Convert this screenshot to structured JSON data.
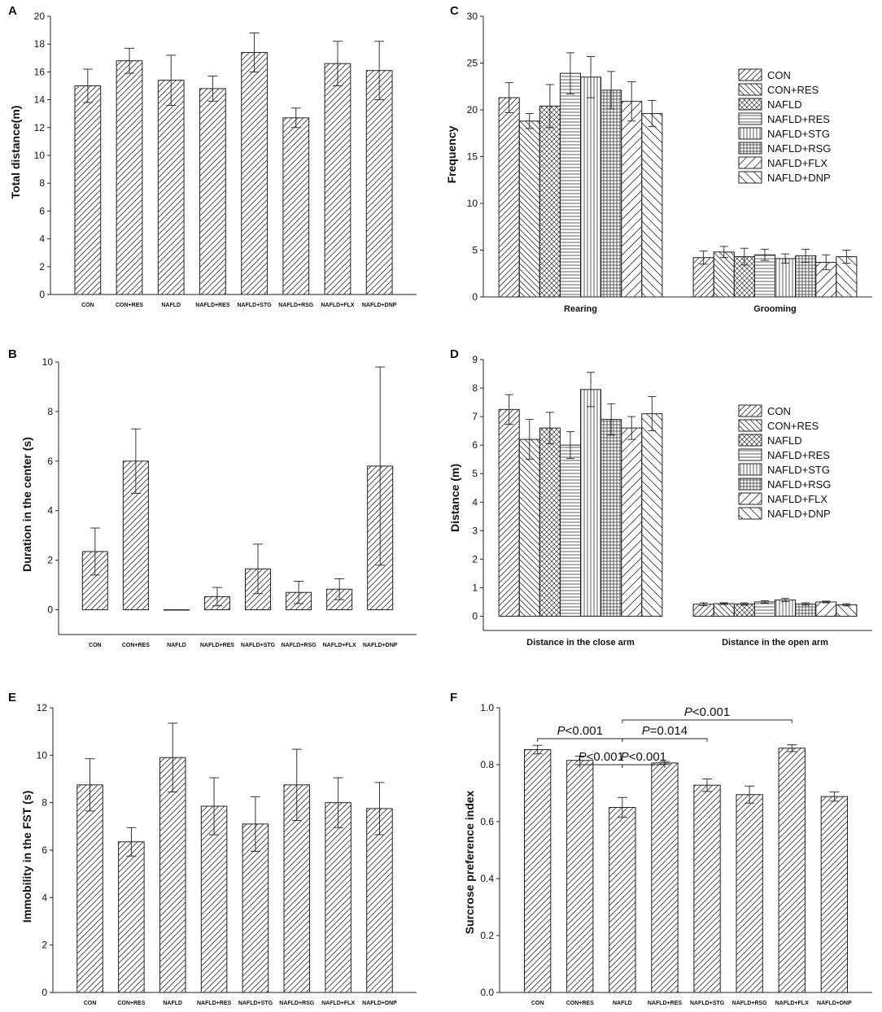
{
  "colors": {
    "ink": "#222222",
    "fill": "#ffffff"
  },
  "chart_data": [
    {
      "id": "A",
      "label": "A",
      "type": "bar",
      "ylabel": "Total distance(m)",
      "ylim": [
        0,
        20
      ],
      "ytick_step": 2,
      "categories": [
        "CON",
        "CON+RES",
        "NAFLD",
        "NAFLD+RES",
        "NAFLD+STG",
        "NAFLD+RSG",
        "NAFLD+FLX",
        "NAFLD+DNP"
      ],
      "values": [
        15.0,
        16.8,
        15.4,
        14.8,
        17.4,
        12.7,
        16.6,
        16.1
      ],
      "errors": [
        1.2,
        0.9,
        1.8,
        0.9,
        1.4,
        0.7,
        1.6,
        2.1
      ],
      "annotations": []
    },
    {
      "id": "B",
      "label": "B",
      "type": "bar",
      "ylabel": "Duration in the center (s)",
      "ylim": [
        -1,
        10
      ],
      "ytick_step": 2,
      "categories": [
        "CON",
        "CON+RES",
        "NAFLD",
        "NAFLD+RES",
        "NAFLD+STG",
        "NAFLD+RSG",
        "NAFLD+FLX",
        "NAFLD+DNP"
      ],
      "values": [
        2.35,
        6.0,
        0.0,
        0.53,
        1.65,
        0.7,
        0.83,
        5.8
      ],
      "errors": [
        0.95,
        1.3,
        0.0,
        0.37,
        1.0,
        0.45,
        0.42,
        4.0
      ],
      "annotations": []
    },
    {
      "id": "C",
      "label": "C",
      "type": "bar",
      "ylabel": "Frequency",
      "ylim": [
        0,
        30
      ],
      "ytick_step": 5,
      "groups": [
        "Rearing",
        "Grooming"
      ],
      "series": [
        {
          "name": "CON",
          "values": [
            21.3,
            4.2
          ],
          "errors": [
            1.6,
            0.7
          ]
        },
        {
          "name": "CON+RES",
          "values": [
            18.8,
            4.8
          ],
          "errors": [
            0.8,
            0.6
          ]
        },
        {
          "name": "NAFLD",
          "values": [
            20.4,
            4.3
          ],
          "errors": [
            2.3,
            0.9
          ]
        },
        {
          "name": "NAFLD+RES",
          "values": [
            23.9,
            4.5
          ],
          "errors": [
            2.2,
            0.6
          ]
        },
        {
          "name": "NAFLD+STG",
          "values": [
            23.5,
            4.1
          ],
          "errors": [
            2.2,
            0.5
          ]
        },
        {
          "name": "NAFLD+RSG",
          "values": [
            22.1,
            4.4
          ],
          "errors": [
            2.0,
            0.7
          ]
        },
        {
          "name": "NAFLD+FLX",
          "values": [
            20.9,
            3.7
          ],
          "errors": [
            2.1,
            0.8
          ]
        },
        {
          "name": "NAFLD+DNP",
          "values": [
            19.6,
            4.3
          ],
          "errors": [
            1.4,
            0.7
          ]
        }
      ],
      "legend": "right"
    },
    {
      "id": "D",
      "label": "D",
      "type": "bar",
      "ylabel": "Distance (m)",
      "ylim": [
        -0.5,
        9
      ],
      "ytick_step": 1,
      "groups": [
        "Distance in the close arm",
        "Distance in the open arm"
      ],
      "series": [
        {
          "name": "CON",
          "values": [
            7.25,
            0.42
          ],
          "errors": [
            0.52,
            0.05
          ]
        },
        {
          "name": "CON+RES",
          "values": [
            6.2,
            0.44
          ],
          "errors": [
            0.7,
            0.03
          ]
        },
        {
          "name": "NAFLD",
          "values": [
            6.6,
            0.43
          ],
          "errors": [
            0.55,
            0.04
          ]
        },
        {
          "name": "NAFLD+RES",
          "values": [
            6.0,
            0.5
          ],
          "errors": [
            0.47,
            0.04
          ]
        },
        {
          "name": "NAFLD+STG",
          "values": [
            7.95,
            0.57
          ],
          "errors": [
            0.6,
            0.06
          ]
        },
        {
          "name": "NAFLD+RSG",
          "values": [
            6.9,
            0.43
          ],
          "errors": [
            0.55,
            0.04
          ]
        },
        {
          "name": "NAFLD+FLX",
          "values": [
            6.6,
            0.5
          ],
          "errors": [
            0.4,
            0.03
          ]
        },
        {
          "name": "NAFLD+DNP",
          "values": [
            7.1,
            0.4
          ],
          "errors": [
            0.6,
            0.04
          ]
        }
      ],
      "legend": "right"
    },
    {
      "id": "E",
      "label": "E",
      "type": "bar",
      "ylabel": "Immobility in the FST (s)",
      "ylim": [
        0,
        12
      ],
      "ytick_step": 2,
      "categories": [
        "CON",
        "CON+RES",
        "NAFLD",
        "NAFLD+RES",
        "NAFLD+STG",
        "NAFLD+RSG",
        "NAFLD+FLX",
        "NAFLD+DNP"
      ],
      "values": [
        8.75,
        6.35,
        9.9,
        7.85,
        7.1,
        8.75,
        8.0,
        7.75
      ],
      "errors": [
        1.1,
        0.6,
        1.45,
        1.2,
        1.15,
        1.5,
        1.05,
        1.1
      ],
      "annotations": []
    },
    {
      "id": "F",
      "label": "F",
      "type": "bar",
      "ylabel": "Surcrose preference index",
      "ylim": [
        0,
        1.0
      ],
      "ytick_step": 0.2,
      "categories": [
        "CON",
        "CON+RES",
        "NAFLD",
        "NAFLD+RES",
        "NAFLD+STG",
        "NAFLD+RSG",
        "NAFLD+FLX",
        "NAFLD+DNP"
      ],
      "values": [
        0.853,
        0.815,
        0.65,
        0.806,
        0.728,
        0.695,
        0.858,
        0.688
      ],
      "errors": [
        0.015,
        0.015,
        0.035,
        0.005,
        0.022,
        0.03,
        0.012,
        0.016
      ],
      "annotations": [
        {
          "from": 0,
          "to": 2,
          "p": "P",
          "text": "<0.001"
        },
        {
          "from": 1,
          "to": 2,
          "p": "P",
          "text": "<0.001"
        },
        {
          "from": 2,
          "to": 3,
          "p": "P",
          "text": "<0.001"
        },
        {
          "from": 2,
          "to": 4,
          "p": "P",
          "text": "=0.014"
        },
        {
          "from": 2,
          "to": 6,
          "p": "P",
          "text": "<0.001"
        }
      ]
    }
  ]
}
